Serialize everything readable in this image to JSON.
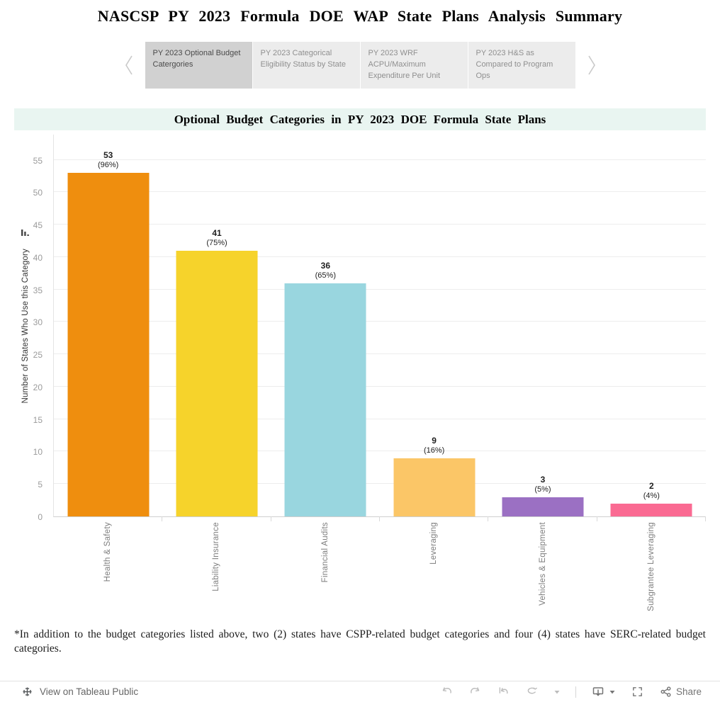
{
  "page": {
    "title": "NASCSP PY 2023 Formula DOE WAP State Plans Analysis Summary"
  },
  "tabs": {
    "items": [
      {
        "label": "PY 2023 Optional Budget Catergories",
        "selected": true
      },
      {
        "label": "PY 2023 Categorical Eligibility Status by State",
        "selected": false
      },
      {
        "label": "PY 2023 WRF ACPU/Maximum Expenditure Per Unit",
        "selected": false
      },
      {
        "label": "PY 2023 H&S as Compared to Program Ops",
        "selected": false
      }
    ]
  },
  "chart_data": {
    "type": "bar",
    "title": "Optional Budget Categories in PY 2023 DOE Formula State Plans",
    "categories": [
      "Health & Safety",
      "Liability Insurance",
      "Financial Audits",
      "Leveraging",
      "Vehicles & Equipment",
      "Subgrantee Leveraging"
    ],
    "values": [
      53,
      41,
      36,
      9,
      3,
      2
    ],
    "pct_labels": [
      "(96%)",
      "(75%)",
      "(65%)",
      "(16%)",
      "(5%)",
      "(4%)"
    ],
    "bar_colors": [
      "#ef8e0e",
      "#f6d32b",
      "#99d6df",
      "#fbc667",
      "#9b70c3",
      "#fa6a92"
    ],
    "xlabel": "",
    "ylabel": "Number of States Who Use this Category",
    "yticks": [
      0,
      5,
      10,
      15,
      20,
      25,
      30,
      35,
      40,
      45,
      50,
      55
    ],
    "ylim": [
      0,
      59
    ],
    "grid": true,
    "legend": "none"
  },
  "footnote": "*In addition to the budget categories listed above, two (2) states have CSPP-related budget categories and four (4) states have SERC-related budget categories.",
  "toolbar": {
    "view_label": "View on Tableau Public",
    "share_label": "Share"
  }
}
